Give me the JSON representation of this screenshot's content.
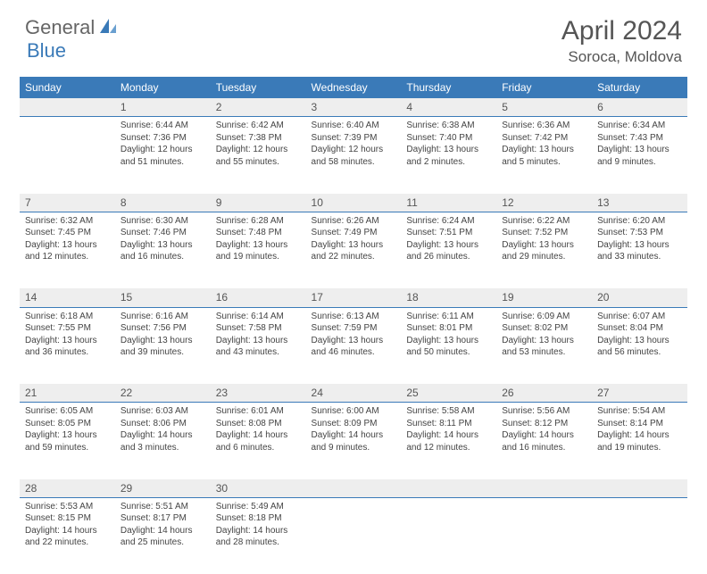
{
  "brand": {
    "part1": "General",
    "part2": "Blue"
  },
  "title": "April 2024",
  "location": "Soroca, Moldova",
  "colors": {
    "header_bg": "#3a7ab8",
    "header_text": "#ffffff",
    "daynum_bg": "#eeeeee",
    "daynum_border": "#3a7ab8",
    "body_text": "#444444",
    "page_bg": "#ffffff",
    "title_text": "#555555",
    "logo_gray": "#666666",
    "logo_blue": "#3a7ab8"
  },
  "typography": {
    "title_fontsize": 30,
    "location_fontsize": 17,
    "weekday_fontsize": 12,
    "daynum_fontsize": 12,
    "cell_fontsize": 10
  },
  "weekdays": [
    "Sunday",
    "Monday",
    "Tuesday",
    "Wednesday",
    "Thursday",
    "Friday",
    "Saturday"
  ],
  "weeks": [
    [
      null,
      {
        "n": "1",
        "sr": "Sunrise: 6:44 AM",
        "ss": "Sunset: 7:36 PM",
        "dl": "Daylight: 12 hours and 51 minutes."
      },
      {
        "n": "2",
        "sr": "Sunrise: 6:42 AM",
        "ss": "Sunset: 7:38 PM",
        "dl": "Daylight: 12 hours and 55 minutes."
      },
      {
        "n": "3",
        "sr": "Sunrise: 6:40 AM",
        "ss": "Sunset: 7:39 PM",
        "dl": "Daylight: 12 hours and 58 minutes."
      },
      {
        "n": "4",
        "sr": "Sunrise: 6:38 AM",
        "ss": "Sunset: 7:40 PM",
        "dl": "Daylight: 13 hours and 2 minutes."
      },
      {
        "n": "5",
        "sr": "Sunrise: 6:36 AM",
        "ss": "Sunset: 7:42 PM",
        "dl": "Daylight: 13 hours and 5 minutes."
      },
      {
        "n": "6",
        "sr": "Sunrise: 6:34 AM",
        "ss": "Sunset: 7:43 PM",
        "dl": "Daylight: 13 hours and 9 minutes."
      }
    ],
    [
      {
        "n": "7",
        "sr": "Sunrise: 6:32 AM",
        "ss": "Sunset: 7:45 PM",
        "dl": "Daylight: 13 hours and 12 minutes."
      },
      {
        "n": "8",
        "sr": "Sunrise: 6:30 AM",
        "ss": "Sunset: 7:46 PM",
        "dl": "Daylight: 13 hours and 16 minutes."
      },
      {
        "n": "9",
        "sr": "Sunrise: 6:28 AM",
        "ss": "Sunset: 7:48 PM",
        "dl": "Daylight: 13 hours and 19 minutes."
      },
      {
        "n": "10",
        "sr": "Sunrise: 6:26 AM",
        "ss": "Sunset: 7:49 PM",
        "dl": "Daylight: 13 hours and 22 minutes."
      },
      {
        "n": "11",
        "sr": "Sunrise: 6:24 AM",
        "ss": "Sunset: 7:51 PM",
        "dl": "Daylight: 13 hours and 26 minutes."
      },
      {
        "n": "12",
        "sr": "Sunrise: 6:22 AM",
        "ss": "Sunset: 7:52 PM",
        "dl": "Daylight: 13 hours and 29 minutes."
      },
      {
        "n": "13",
        "sr": "Sunrise: 6:20 AM",
        "ss": "Sunset: 7:53 PM",
        "dl": "Daylight: 13 hours and 33 minutes."
      }
    ],
    [
      {
        "n": "14",
        "sr": "Sunrise: 6:18 AM",
        "ss": "Sunset: 7:55 PM",
        "dl": "Daylight: 13 hours and 36 minutes."
      },
      {
        "n": "15",
        "sr": "Sunrise: 6:16 AM",
        "ss": "Sunset: 7:56 PM",
        "dl": "Daylight: 13 hours and 39 minutes."
      },
      {
        "n": "16",
        "sr": "Sunrise: 6:14 AM",
        "ss": "Sunset: 7:58 PM",
        "dl": "Daylight: 13 hours and 43 minutes."
      },
      {
        "n": "17",
        "sr": "Sunrise: 6:13 AM",
        "ss": "Sunset: 7:59 PM",
        "dl": "Daylight: 13 hours and 46 minutes."
      },
      {
        "n": "18",
        "sr": "Sunrise: 6:11 AM",
        "ss": "Sunset: 8:01 PM",
        "dl": "Daylight: 13 hours and 50 minutes."
      },
      {
        "n": "19",
        "sr": "Sunrise: 6:09 AM",
        "ss": "Sunset: 8:02 PM",
        "dl": "Daylight: 13 hours and 53 minutes."
      },
      {
        "n": "20",
        "sr": "Sunrise: 6:07 AM",
        "ss": "Sunset: 8:04 PM",
        "dl": "Daylight: 13 hours and 56 minutes."
      }
    ],
    [
      {
        "n": "21",
        "sr": "Sunrise: 6:05 AM",
        "ss": "Sunset: 8:05 PM",
        "dl": "Daylight: 13 hours and 59 minutes."
      },
      {
        "n": "22",
        "sr": "Sunrise: 6:03 AM",
        "ss": "Sunset: 8:06 PM",
        "dl": "Daylight: 14 hours and 3 minutes."
      },
      {
        "n": "23",
        "sr": "Sunrise: 6:01 AM",
        "ss": "Sunset: 8:08 PM",
        "dl": "Daylight: 14 hours and 6 minutes."
      },
      {
        "n": "24",
        "sr": "Sunrise: 6:00 AM",
        "ss": "Sunset: 8:09 PM",
        "dl": "Daylight: 14 hours and 9 minutes."
      },
      {
        "n": "25",
        "sr": "Sunrise: 5:58 AM",
        "ss": "Sunset: 8:11 PM",
        "dl": "Daylight: 14 hours and 12 minutes."
      },
      {
        "n": "26",
        "sr": "Sunrise: 5:56 AM",
        "ss": "Sunset: 8:12 PM",
        "dl": "Daylight: 14 hours and 16 minutes."
      },
      {
        "n": "27",
        "sr": "Sunrise: 5:54 AM",
        "ss": "Sunset: 8:14 PM",
        "dl": "Daylight: 14 hours and 19 minutes."
      }
    ],
    [
      {
        "n": "28",
        "sr": "Sunrise: 5:53 AM",
        "ss": "Sunset: 8:15 PM",
        "dl": "Daylight: 14 hours and 22 minutes."
      },
      {
        "n": "29",
        "sr": "Sunrise: 5:51 AM",
        "ss": "Sunset: 8:17 PM",
        "dl": "Daylight: 14 hours and 25 minutes."
      },
      {
        "n": "30",
        "sr": "Sunrise: 5:49 AM",
        "ss": "Sunset: 8:18 PM",
        "dl": "Daylight: 14 hours and 28 minutes."
      },
      null,
      null,
      null,
      null
    ]
  ]
}
